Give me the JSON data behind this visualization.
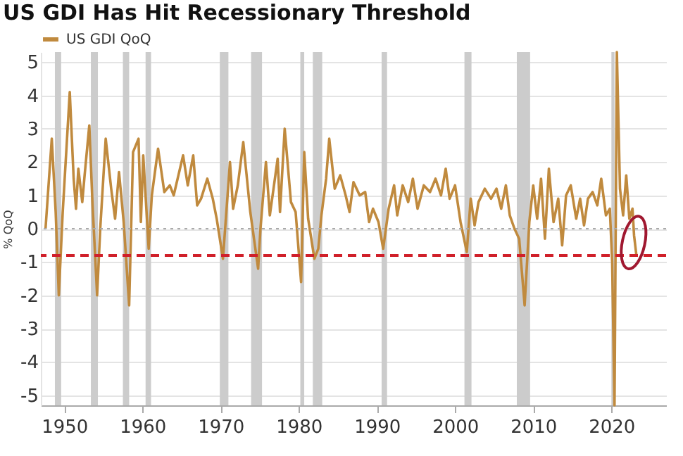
{
  "chart_data": {
    "type": "line",
    "title": "US GDI Has Hit Recessionary Threshold",
    "ylabel": "% QoQ",
    "series": [
      {
        "name": "US GDI QoQ",
        "color": "#c08a3e",
        "x": [
          1947.6,
          1948.4,
          1948.9,
          1949.3,
          1949.8,
          1950.7,
          1951.2,
          1951.5,
          1951.8,
          1952.3,
          1952.6,
          1953.2,
          1953.6,
          1954.2,
          1954.6,
          1955.3,
          1956.0,
          1956.5,
          1957.0,
          1957.6,
          1958.3,
          1958.8,
          1959.5,
          1959.8,
          1960.1,
          1960.8,
          1961.2,
          1962.0,
          1962.8,
          1963.5,
          1964.0,
          1965.2,
          1965.8,
          1966.5,
          1967.0,
          1967.5,
          1968.3,
          1969.0,
          1969.5,
          1970.3,
          1971.2,
          1971.6,
          1972.2,
          1972.9,
          1973.8,
          1974.8,
          1975.1,
          1975.8,
          1976.3,
          1977.3,
          1977.6,
          1978.2,
          1979.0,
          1979.6,
          1980.3,
          1980.7,
          1981.2,
          1982.0,
          1982.5,
          1982.9,
          1983.5,
          1983.9,
          1984.6,
          1985.3,
          1986.0,
          1986.5,
          1987.0,
          1987.8,
          1988.5,
          1989.0,
          1989.5,
          1990.2,
          1990.8,
          1991.5,
          1992.2,
          1992.6,
          1993.3,
          1994.0,
          1994.6,
          1995.2,
          1996.0,
          1996.8,
          1997.5,
          1998.2,
          1998.8,
          1999.3,
          2000.0,
          2000.7,
          2001.5,
          2002.0,
          2002.5,
          2003.0,
          2003.8,
          2004.6,
          2005.3,
          2005.9,
          2006.5,
          2007.0,
          2007.6,
          2008.2,
          2008.9,
          2009.5,
          2010.0,
          2010.5,
          2011.0,
          2011.5,
          2012.0,
          2012.6,
          2013.2,
          2013.7,
          2014.2,
          2014.8,
          2015.5,
          2016.0,
          2016.5,
          2017.0,
          2017.6,
          2018.2,
          2018.7,
          2019.3,
          2019.8,
          2020.1,
          2020.4,
          2020.7,
          2021.1,
          2021.5,
          2021.9,
          2022.3,
          2022.7,
          2022.9,
          2023.2
        ],
        "values": [
          0.0,
          2.7,
          0.5,
          -2.0,
          0.5,
          4.1,
          1.5,
          0.6,
          1.8,
          0.8,
          1.6,
          3.1,
          0.8,
          -2.0,
          0.0,
          2.7,
          1.2,
          0.3,
          1.7,
          0.2,
          -2.3,
          2.3,
          2.7,
          0.2,
          2.2,
          -0.6,
          1.0,
          2.4,
          1.1,
          1.3,
          1.0,
          2.2,
          1.3,
          2.2,
          0.7,
          0.9,
          1.5,
          0.9,
          0.3,
          -0.9,
          2.0,
          0.6,
          1.3,
          2.6,
          0.5,
          -1.2,
          0.0,
          2.0,
          0.4,
          2.1,
          0.5,
          3.0,
          0.8,
          0.5,
          -1.6,
          2.3,
          0.3,
          -0.9,
          -0.6,
          0.4,
          1.5,
          2.7,
          1.2,
          1.6,
          1.0,
          0.5,
          1.4,
          1.0,
          1.1,
          0.2,
          0.6,
          0.2,
          -0.6,
          0.6,
          1.3,
          0.4,
          1.3,
          0.8,
          1.5,
          0.6,
          1.3,
          1.1,
          1.5,
          1.0,
          1.8,
          0.9,
          1.3,
          0.2,
          -0.7,
          0.9,
          0.1,
          0.8,
          1.2,
          0.9,
          1.2,
          0.6,
          1.3,
          0.4,
          0.0,
          -0.3,
          -2.3,
          0.2,
          1.3,
          0.3,
          1.5,
          -0.3,
          1.8,
          0.2,
          0.9,
          -0.5,
          1.0,
          1.3,
          0.3,
          0.9,
          0.1,
          0.9,
          1.1,
          0.7,
          1.5,
          0.4,
          0.6,
          -1.0,
          -5.3,
          5.3,
          1.2,
          0.4,
          1.6,
          0.3,
          0.6,
          -0.2,
          -0.8
        ]
      }
    ],
    "xlim": [
      1947,
      2027
    ],
    "xticks": [
      1950,
      1960,
      1970,
      1980,
      1990,
      2000,
      2010,
      2020
    ],
    "ylim": [
      -5.3,
      5.3
    ],
    "yticks": [
      -5,
      -4,
      -3,
      -2,
      -1,
      0,
      1,
      2,
      3,
      4,
      5
    ],
    "grid": "y",
    "legend": "top left",
    "marker": "none",
    "line_style": "solid",
    "ref_lines": [
      {
        "axis": "y",
        "value": 0,
        "color": "#aaaaaa",
        "line_style": "dotted"
      },
      {
        "axis": "y",
        "value": -0.8,
        "color": "#d0202a",
        "line_style": "dashed"
      }
    ],
    "bands": [
      {
        "axis": "x",
        "from": 1948.8,
        "to": 1949.6,
        "color": "#cccccc"
      },
      {
        "axis": "x",
        "from": 1953.4,
        "to": 1954.3,
        "color": "#cccccc"
      },
      {
        "axis": "x",
        "from": 1957.5,
        "to": 1958.3,
        "color": "#cccccc"
      },
      {
        "axis": "x",
        "from": 1960.4,
        "to": 1961.1,
        "color": "#cccccc"
      },
      {
        "axis": "x",
        "from": 1969.9,
        "to": 1971.0,
        "color": "#cccccc"
      },
      {
        "axis": "x",
        "from": 1973.9,
        "to": 1975.3,
        "color": "#cccccc"
      },
      {
        "axis": "x",
        "from": 1980.2,
        "to": 1980.7,
        "color": "#cccccc"
      },
      {
        "axis": "x",
        "from": 1981.8,
        "to": 1983.0,
        "color": "#cccccc"
      },
      {
        "axis": "x",
        "from": 1990.6,
        "to": 1991.3,
        "color": "#cccccc"
      },
      {
        "axis": "x",
        "from": 2001.2,
        "to": 2002.1,
        "color": "#cccccc"
      },
      {
        "axis": "x",
        "from": 2007.9,
        "to": 2009.6,
        "color": "#cccccc"
      },
      {
        "axis": "x",
        "from": 2020.0,
        "to": 2020.4,
        "color": "#cccccc"
      }
    ]
  }
}
